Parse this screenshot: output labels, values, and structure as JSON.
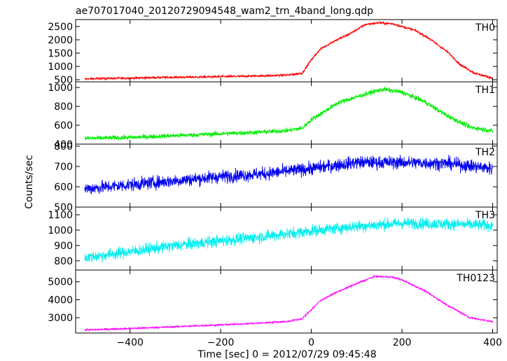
{
  "chart_data": {
    "type": "line",
    "title": "ae707017040_20120729094548_wam2_trn_4band_long.qdp",
    "xlabel": "Time [sec] 0 = 2012/07/29 09:45:48",
    "ylabel": "Counts/sec",
    "xlim": [
      -520,
      410
    ],
    "xticks": [
      -400,
      -200,
      0,
      200,
      400
    ],
    "grid": false,
    "panels": [
      {
        "name": "TH0",
        "color": "#ff0000",
        "ylim": [
          420,
          2760
        ],
        "yticks": [
          500,
          1000,
          1500,
          2000,
          2500
        ],
        "noise": 45,
        "x": [
          -500,
          -450,
          -400,
          -350,
          -300,
          -250,
          -200,
          -150,
          -100,
          -50,
          -20,
          0,
          20,
          50,
          80,
          100,
          120,
          150,
          180,
          200,
          230,
          260,
          300,
          330,
          360,
          400
        ],
        "y": [
          530,
          550,
          560,
          580,
          590,
          600,
          615,
          630,
          650,
          680,
          750,
          1250,
          1650,
          1950,
          2180,
          2380,
          2580,
          2640,
          2600,
          2500,
          2350,
          2050,
          1550,
          1050,
          750,
          560
        ]
      },
      {
        "name": "TH1",
        "color": "#00ee00",
        "ylim": [
          400,
          1060
        ],
        "yticks": [
          400,
          600,
          800,
          1000
        ],
        "noise": 25,
        "x": [
          -500,
          -450,
          -400,
          -350,
          -300,
          -250,
          -200,
          -150,
          -100,
          -50,
          -20,
          0,
          30,
          60,
          100,
          140,
          160,
          200,
          250,
          300,
          350,
          400
        ],
        "y": [
          460,
          465,
          470,
          480,
          490,
          500,
          510,
          520,
          530,
          545,
          570,
          660,
          750,
          840,
          900,
          960,
          980,
          950,
          850,
          700,
          580,
          540
        ]
      },
      {
        "name": "TH2",
        "color": "#0000ee",
        "ylim": [
          500,
          810
        ],
        "yticks": [
          500,
          600,
          700,
          800
        ],
        "noise": 32,
        "x": [
          -500,
          -400,
          -300,
          -200,
          -100,
          0,
          100,
          200,
          300,
          400
        ],
        "y": [
          590,
          610,
          630,
          650,
          665,
          690,
          720,
          720,
          715,
          690
        ]
      },
      {
        "name": "TH3",
        "color": "#00eeee",
        "ylim": [
          740,
          1150
        ],
        "yticks": [
          800,
          900,
          1000,
          1100
        ],
        "noise": 38,
        "x": [
          -500,
          -400,
          -300,
          -200,
          -100,
          0,
          100,
          200,
          300,
          400
        ],
        "y": [
          820,
          860,
          900,
          930,
          960,
          995,
          1025,
          1045,
          1040,
          1030
        ]
      },
      {
        "name": "TH0123",
        "color": "#ff00ff",
        "ylim": [
          2150,
          5650
        ],
        "yticks": [
          3000,
          4000,
          5000
        ],
        "noise": 50,
        "x": [
          -500,
          -450,
          -400,
          -300,
          -200,
          -100,
          -50,
          -20,
          0,
          20,
          50,
          100,
          140,
          180,
          200,
          250,
          300,
          350,
          400
        ],
        "y": [
          2320,
          2360,
          2400,
          2500,
          2600,
          2720,
          2800,
          2950,
          3450,
          3950,
          4350,
          4900,
          5300,
          5250,
          5100,
          4500,
          3700,
          3000,
          2780
        ]
      }
    ]
  }
}
